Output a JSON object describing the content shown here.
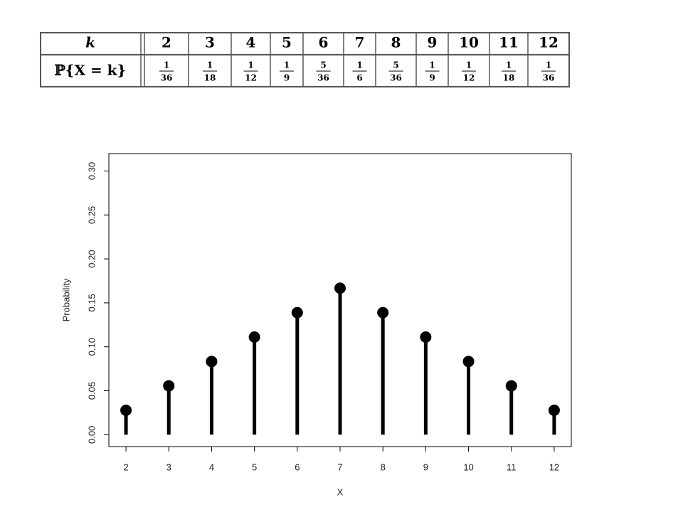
{
  "table": {
    "header": "k",
    "row_label": "ℙ{X = k}",
    "k": [
      "2",
      "3",
      "4",
      "5",
      "6",
      "7",
      "8",
      "9",
      "10",
      "11",
      "12"
    ],
    "probabilities": [
      {
        "num": "1",
        "den": "36"
      },
      {
        "num": "1",
        "den": "18"
      },
      {
        "num": "1",
        "den": "12"
      },
      {
        "num": "1",
        "den": "9"
      },
      {
        "num": "5",
        "den": "36"
      },
      {
        "num": "1",
        "den": "6"
      },
      {
        "num": "5",
        "den": "36"
      },
      {
        "num": "1",
        "den": "9"
      },
      {
        "num": "1",
        "den": "12"
      },
      {
        "num": "1",
        "den": "18"
      },
      {
        "num": "1",
        "den": "36"
      }
    ]
  },
  "chart_data": {
    "type": "stem",
    "x_label": "X",
    "y_label": "Probability",
    "x": [
      2,
      3,
      4,
      5,
      6,
      7,
      8,
      9,
      10,
      11,
      12
    ],
    "values": [
      0.0278,
      0.0556,
      0.0833,
      0.1111,
      0.1389,
      0.1667,
      0.1389,
      0.1111,
      0.0833,
      0.0556,
      0.0278
    ],
    "color": "#000000",
    "xlim": [
      1.6,
      12.4
    ],
    "xticks": [
      2,
      3,
      4,
      5,
      6,
      7,
      8,
      9,
      10,
      11,
      12
    ],
    "ylim": [
      -0.0135,
      0.3198
    ],
    "yticks": [
      {
        "value": 0,
        "label": "0.00"
      },
      {
        "value": 0.05,
        "label": "0.05"
      },
      {
        "value": 0.1,
        "label": "0.10"
      },
      {
        "value": 0.15,
        "label": "0.15"
      },
      {
        "value": 0.2,
        "label": "0.20"
      },
      {
        "value": 0.25,
        "label": "0.25"
      },
      {
        "value": 0.3,
        "label": "0.30"
      }
    ],
    "grid": false
  }
}
